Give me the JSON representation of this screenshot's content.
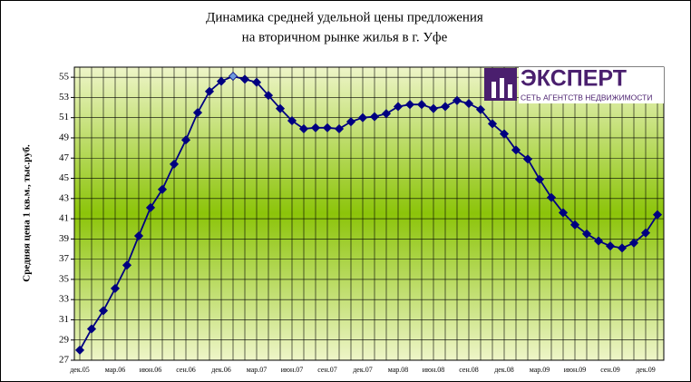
{
  "chart_data": {
    "type": "line",
    "title": [
      "Динамика  средней удельной цены предложения",
      "на вторичном рынке жилья в г. Уфе"
    ],
    "y_label": "Средняя цена 1 кв.м., тыс.руб.",
    "logo": {
      "name": "ЭКСПЕРТ",
      "tagline": "СЕТЬ АГЕНТСТВ НЕДВИЖИМОСТИ"
    },
    "categories": [
      "дек.05",
      null,
      null,
      "мар.06",
      null,
      null,
      "июн.06",
      null,
      null,
      "сен.06",
      null,
      null,
      "дек.06",
      null,
      null,
      "мар.07",
      null,
      null,
      "июн.07",
      null,
      null,
      "сен.07",
      null,
      null,
      "дек.07",
      null,
      null,
      "мар.08",
      null,
      null,
      "июн.08",
      null,
      null,
      "сен.08",
      null,
      null,
      "дек.08",
      null,
      null,
      "мар.09",
      null,
      null,
      "июн.09",
      null,
      null,
      "сен.09",
      null,
      null,
      "дек.09",
      null
    ],
    "series": [
      {
        "name": "Средняя цена",
        "color": "#000080",
        "values": [
          28.0,
          30.1,
          31.9,
          34.1,
          36.4,
          39.3,
          42.1,
          43.9,
          46.4,
          48.8,
          51.5,
          53.6,
          54.6,
          55.1,
          54.8,
          54.5,
          53.2,
          51.9,
          50.7,
          49.9,
          50.0,
          50.0,
          49.9,
          50.6,
          51.0,
          51.1,
          51.4,
          52.1,
          52.3,
          52.3,
          51.9,
          52.1,
          52.7,
          52.4,
          51.8,
          50.4,
          49.4,
          47.8,
          46.9,
          44.9,
          43.1,
          41.6,
          40.4,
          39.5,
          38.8,
          38.3,
          38.1,
          38.6,
          39.6,
          41.4
        ]
      }
    ],
    "highlight_index": 13,
    "highlight_color": "#6f9bdc",
    "ylim": [
      27,
      56
    ],
    "yticks": [
      27,
      29,
      31,
      33,
      35,
      37,
      39,
      41,
      43,
      45,
      47,
      49,
      51,
      53,
      55
    ],
    "grid": true
  }
}
